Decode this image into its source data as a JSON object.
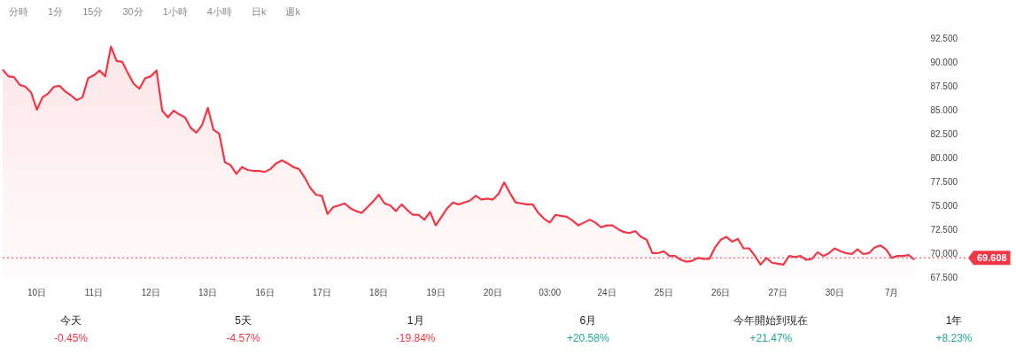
{
  "chart_data": [
    {
      "type": "area",
      "color": "#f23645",
      "categories": [
        null,
        null,
        null,
        null,
        null,
        null,
        "10日",
        null,
        null,
        null,
        null,
        null,
        null,
        null,
        null,
        null,
        "11日",
        null,
        null,
        null,
        null,
        null,
        null,
        null,
        null,
        null,
        "12日",
        null,
        null,
        null,
        null,
        null,
        null,
        null,
        null,
        null,
        "13日",
        null,
        null,
        null,
        null,
        null,
        null,
        null,
        null,
        null,
        "16日",
        null,
        null,
        null,
        null,
        null,
        null,
        null,
        null,
        null,
        "17日",
        null,
        null,
        null,
        null,
        null,
        null,
        null,
        null,
        null,
        "18日",
        null,
        null,
        null,
        null,
        null,
        null,
        null,
        null,
        null,
        "19日",
        null,
        null,
        null,
        null,
        null,
        null,
        null,
        null,
        null,
        "20日",
        null,
        null,
        null,
        null,
        null,
        null,
        null,
        null,
        null,
        "03:00",
        null,
        null,
        null,
        null,
        null,
        null,
        null,
        null,
        null,
        "24日",
        null,
        null,
        null,
        null,
        null,
        null,
        null,
        null,
        null,
        "25日",
        null,
        null,
        null,
        null,
        null,
        null,
        null,
        null,
        null,
        "26日",
        null,
        null,
        null,
        null,
        null,
        null,
        null,
        null,
        null,
        "27日",
        null,
        null,
        null,
        null,
        null,
        null,
        null,
        null,
        null,
        "30日",
        null,
        null,
        null,
        null,
        null,
        null,
        null,
        null,
        null,
        "7月",
        null,
        null,
        null,
        null
      ],
      "values": [
        89.3,
        88.6,
        88.5,
        87.7,
        87.5,
        86.9,
        85.1,
        86.4,
        86.8,
        87.5,
        87.6,
        87.0,
        86.6,
        86.1,
        86.4,
        88.4,
        88.7,
        89.2,
        88.6,
        91.7,
        90.2,
        90.1,
        88.9,
        87.8,
        87.3,
        88.4,
        88.6,
        89.2,
        85.0,
        84.3,
        85.0,
        84.6,
        84.3,
        83.2,
        82.7,
        83.5,
        85.3,
        83.0,
        82.6,
        79.6,
        79.3,
        78.4,
        79.1,
        78.8,
        78.7,
        78.7,
        78.6,
        78.9,
        79.5,
        79.8,
        79.5,
        79.1,
        78.9,
        78.0,
        76.9,
        76.2,
        76.1,
        74.2,
        74.9,
        75.1,
        75.3,
        74.8,
        74.5,
        74.3,
        74.9,
        75.5,
        76.2,
        75.3,
        75.1,
        74.5,
        75.2,
        74.6,
        74.1,
        74.1,
        73.6,
        74.4,
        73.0,
        73.9,
        74.8,
        75.4,
        75.2,
        75.4,
        75.6,
        76.1,
        75.7,
        75.8,
        75.7,
        76.3,
        77.5,
        76.4,
        75.4,
        75.3,
        75.2,
        75.2,
        74.3,
        73.7,
        73.3,
        74.1,
        74.0,
        73.9,
        73.5,
        73.0,
        73.3,
        73.6,
        73.3,
        72.8,
        73.0,
        73.0,
        72.6,
        72.3,
        72.2,
        72.4,
        71.8,
        71.5,
        70.1,
        70.1,
        70.3,
        69.8,
        69.8,
        69.4,
        69.2,
        69.3,
        69.6,
        69.5,
        69.5,
        70.7,
        71.5,
        71.8,
        71.3,
        71.6,
        70.6,
        70.6,
        69.8,
        68.9,
        69.6,
        69.1,
        69.0,
        68.9,
        69.8,
        69.7,
        69.8,
        69.4,
        69.5,
        70.2,
        69.8,
        70.1,
        70.6,
        70.3,
        70.1,
        70.0,
        70.5,
        70.0,
        70.1,
        70.7,
        70.9,
        70.5,
        69.6,
        69.8,
        69.8,
        69.9,
        69.4
      ],
      "ylim": [
        67.5,
        92.5
      ],
      "yticks": [
        {
          "value": 67.5,
          "label": "67.500"
        },
        {
          "value": 70,
          "label": "70.000"
        },
        {
          "value": 72.5,
          "label": "72.500"
        },
        {
          "value": 75,
          "label": "75.000"
        },
        {
          "value": 77.5,
          "label": "77.500"
        },
        {
          "value": 80,
          "label": "80.000"
        },
        {
          "value": 82.5,
          "label": "82.500"
        },
        {
          "value": 85,
          "label": "85.000"
        },
        {
          "value": 87.5,
          "label": "87.500"
        },
        {
          "value": 90,
          "label": "90.000"
        },
        {
          "value": 92.5,
          "label": "92.500"
        }
      ],
      "ref_lines": [
        {
          "axis": "y",
          "value": 69.608,
          "label": "69.608",
          "color": "#f23645",
          "line_style": "dotted"
        }
      ],
      "annotations": [
        "分時",
        "1分",
        "15分",
        "30分",
        "1小時",
        "4小時",
        "日k",
        "週k"
      ]
    },
    {
      "type": "other",
      "categories": [
        "今天",
        "5天",
        "1月",
        "6月",
        "今年開始到現在",
        "1年"
      ],
      "value_labels": [
        "-0.45%",
        "-4.57%",
        "-19.84%",
        "+20.58%",
        "+21.47%",
        "+8.23%"
      ],
      "colors": [
        "#f23645",
        "#f23645",
        "#f23645",
        "#22ab94",
        "#22ab94",
        "#22ab94"
      ]
    }
  ]
}
